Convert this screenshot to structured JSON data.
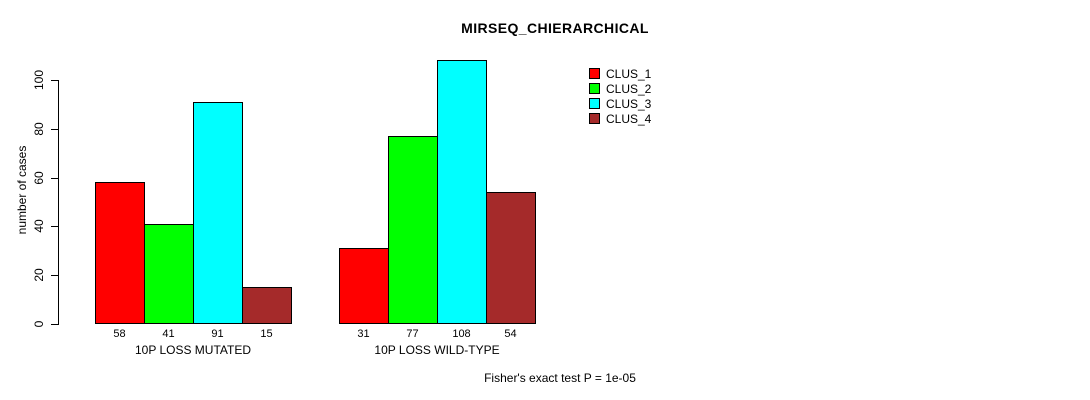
{
  "title": "MIRSEQ_CHIERARCHICAL",
  "ylabel": "number of cases",
  "footer": "Fisher's exact test P = 1e-05",
  "chart_data": {
    "type": "bar",
    "title": "MIRSEQ_CHIERARCHICAL",
    "xlabel": "",
    "ylabel": "number of cases",
    "categories": [
      "10P LOSS MUTATED",
      "10P LOSS WILD-TYPE"
    ],
    "series": [
      {
        "name": "CLUS_1",
        "color": "#ff0000",
        "values": [
          58,
          31
        ]
      },
      {
        "name": "CLUS_2",
        "color": "#00ff00",
        "values": [
          41,
          77
        ]
      },
      {
        "name": "CLUS_3",
        "color": "#00ffff",
        "values": [
          91,
          108
        ]
      },
      {
        "name": "CLUS_4",
        "color": "#a52a2a",
        "values": [
          15,
          54
        ]
      }
    ],
    "bar_value_labels": [
      [
        58,
        41,
        91,
        15
      ],
      [
        31,
        77,
        108,
        54
      ]
    ],
    "yticks": [
      0,
      20,
      40,
      60,
      80,
      100
    ],
    "ylim": [
      0,
      100
    ],
    "grid": false,
    "legend_position": "top-right",
    "annotation": "Fisher's exact test P = 1e-05"
  }
}
